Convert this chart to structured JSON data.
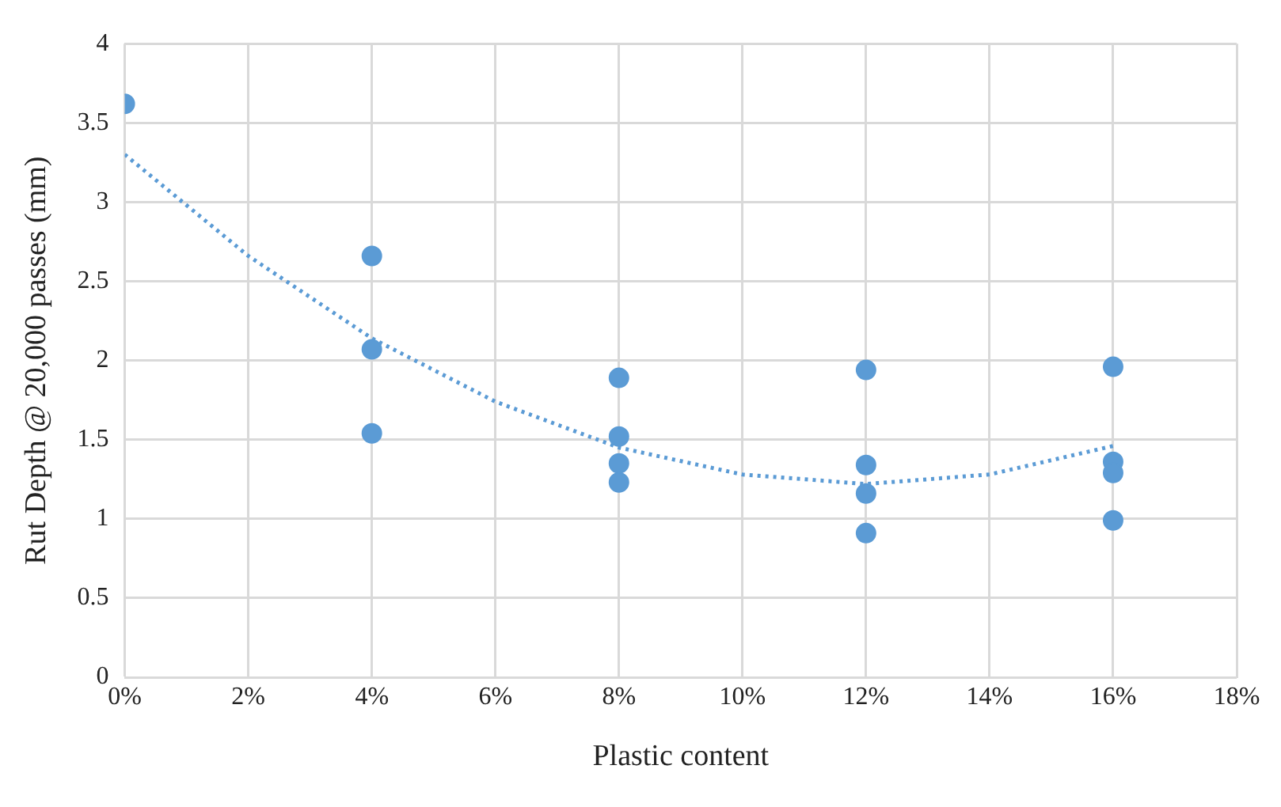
{
  "chart_data": {
    "type": "scatter",
    "xlabel": "Plastic content",
    "ylabel": "Rut Depth @ 20,000 passes (mm)",
    "xlim": [
      0,
      18
    ],
    "xticks": [
      {
        "value": 0,
        "label": "0%"
      },
      {
        "value": 2,
        "label": "2%"
      },
      {
        "value": 4,
        "label": "4%"
      },
      {
        "value": 6,
        "label": "6%"
      },
      {
        "value": 8,
        "label": "8%"
      },
      {
        "value": 10,
        "label": "10%"
      },
      {
        "value": 12,
        "label": "12%"
      },
      {
        "value": 14,
        "label": "14%"
      },
      {
        "value": 16,
        "label": "16%"
      },
      {
        "value": 18,
        "label": "18%"
      }
    ],
    "ylim": [
      0,
      4
    ],
    "yticks": [
      0,
      0.5,
      1,
      1.5,
      2,
      2.5,
      3,
      3.5,
      4
    ],
    "grid": true,
    "legend": false,
    "series": [
      {
        "color": "#5b9bd5",
        "marker": "circle",
        "x": [
          0,
          4,
          4,
          4,
          8,
          8,
          8,
          8,
          12,
          12,
          12,
          12,
          16,
          16,
          16,
          16
        ],
        "values": [
          3.62,
          2.66,
          2.07,
          1.54,
          1.89,
          1.52,
          1.35,
          1.23,
          1.94,
          1.34,
          1.16,
          0.91,
          1.96,
          1.36,
          1.29,
          0.99
        ]
      },
      {
        "type": "line",
        "color": "#5b9bd5",
        "marker": "none",
        "line_style": "dotted",
        "x": [
          0,
          2,
          4,
          6,
          8,
          10,
          12,
          14,
          16
        ],
        "values": [
          3.3,
          2.66,
          2.14,
          1.74,
          1.45,
          1.28,
          1.22,
          1.28,
          1.46
        ]
      }
    ]
  }
}
